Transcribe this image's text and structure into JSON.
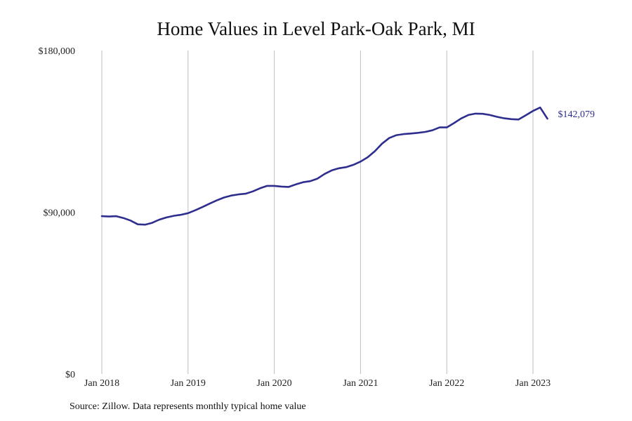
{
  "title": "Home Values in Level Park-Oak Park, MI",
  "source": "Source: Zillow. Data represents monthly typical home value",
  "chart_data": {
    "type": "line",
    "title": "Home Values in Level Park-Oak Park, MI",
    "xlabel": "",
    "ylabel": "",
    "ylim": [
      0,
      180000
    ],
    "yticks": [
      0,
      90000,
      180000
    ],
    "ytick_labels": [
      "$0",
      "$90,000",
      "$180,000"
    ],
    "xticks": [
      "2018-01",
      "2019-01",
      "2020-01",
      "2021-01",
      "2022-01",
      "2023-01"
    ],
    "xtick_labels": [
      "Jan 2018",
      "Jan 2019",
      "Jan 2020",
      "Jan 2021",
      "Jan 2022",
      "Jan 2023"
    ],
    "grid": "vertical",
    "line_color": "#2e2e8f",
    "end_label": "$142,079",
    "series": [
      {
        "x": [
          "2018-01",
          "2018-02",
          "2018-03",
          "2018-04",
          "2018-05",
          "2018-06",
          "2018-07",
          "2018-08",
          "2018-09",
          "2018-10",
          "2018-11",
          "2018-12",
          "2019-01",
          "2019-02",
          "2019-03",
          "2019-04",
          "2019-05",
          "2019-06",
          "2019-07",
          "2019-08",
          "2019-09",
          "2019-10",
          "2019-11",
          "2019-12",
          "2020-01",
          "2020-02",
          "2020-03",
          "2020-04",
          "2020-05",
          "2020-06",
          "2020-07",
          "2020-08",
          "2020-09",
          "2020-10",
          "2020-11",
          "2020-12",
          "2021-01",
          "2021-02",
          "2021-03",
          "2021-04",
          "2021-05",
          "2021-06",
          "2021-07",
          "2021-08",
          "2021-09",
          "2021-10",
          "2021-11",
          "2021-12",
          "2022-01",
          "2022-02",
          "2022-03",
          "2022-04",
          "2022-05",
          "2022-06",
          "2022-07",
          "2022-08",
          "2022-09",
          "2022-10",
          "2022-11",
          "2022-12",
          "2023-01",
          "2023-02",
          "2023-03"
        ],
        "values": [
          87800,
          87600,
          87800,
          86800,
          85400,
          83300,
          83100,
          84100,
          85900,
          87100,
          88000,
          88600,
          89500,
          91100,
          92900,
          94800,
          96600,
          98200,
          99300,
          99900,
          100300,
          101600,
          103300,
          104700,
          104700,
          104300,
          104100,
          105500,
          106700,
          107300,
          108700,
          111300,
          113300,
          114500,
          115100,
          116400,
          118200,
          120600,
          124000,
          128200,
          131300,
          132900,
          133500,
          133800,
          134200,
          134700,
          135600,
          137200,
          137200,
          139600,
          142200,
          144100,
          144900,
          144800,
          144100,
          143100,
          142300,
          141800,
          141600,
          144000,
          146400,
          148300,
          142079
        ]
      }
    ]
  }
}
